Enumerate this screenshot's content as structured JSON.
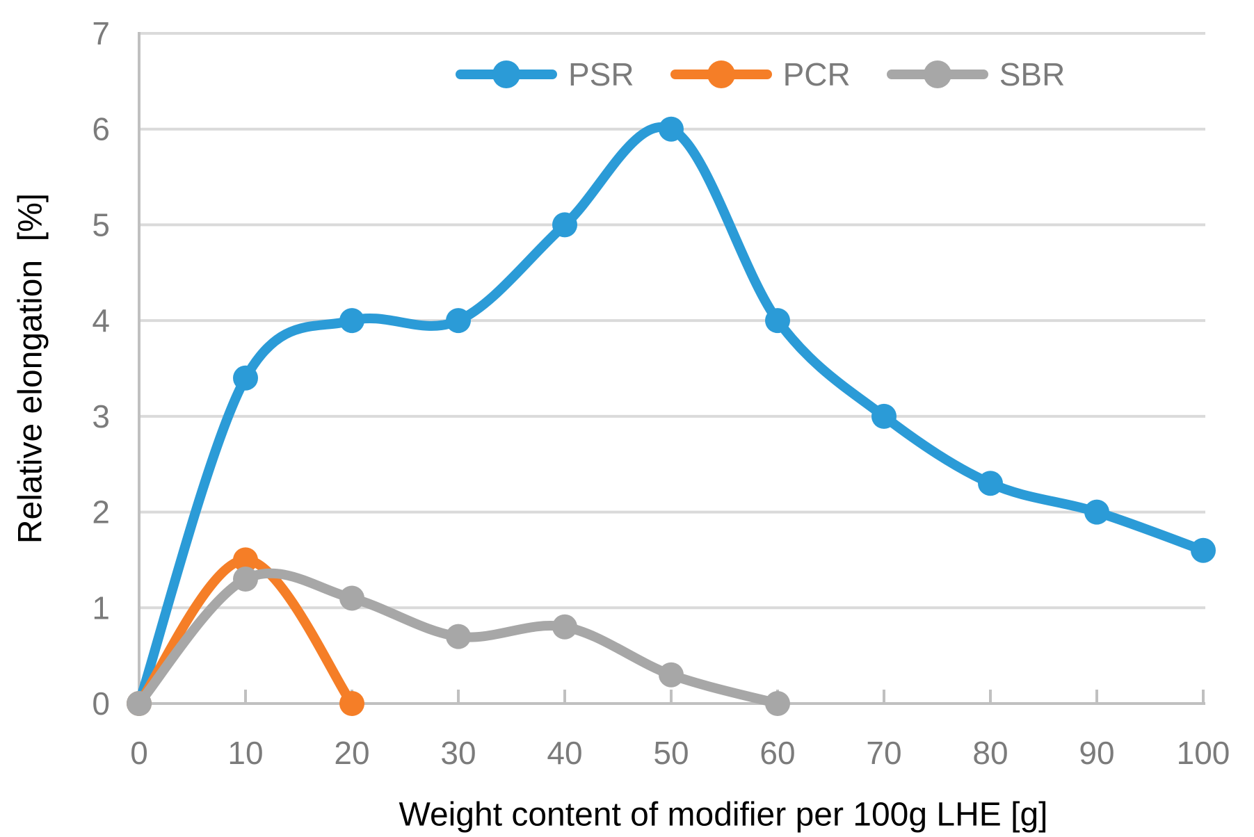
{
  "chart_data": {
    "type": "line",
    "title": "",
    "xlabel": "Weight content of modifier per 100g LHE [g]",
    "ylabel": "Relative elongation  [%]",
    "xlim": [
      0,
      100
    ],
    "ylim": [
      0,
      7
    ],
    "x_ticks": [
      0,
      10,
      20,
      30,
      40,
      50,
      60,
      70,
      80,
      90,
      100
    ],
    "y_ticks": [
      0,
      1,
      2,
      3,
      4,
      5,
      6,
      7
    ],
    "grid": "horizontal",
    "smooth_lines": true,
    "legend_position": "top-center",
    "series": [
      {
        "name": "PSR",
        "color": "#2b9bd7",
        "x": [
          0,
          10,
          20,
          30,
          40,
          50,
          60,
          70,
          80,
          90,
          100
        ],
        "y": [
          0,
          3.4,
          4,
          4,
          5,
          6,
          4,
          3,
          2.3,
          2,
          1.6
        ]
      },
      {
        "name": "PCR",
        "color": "#f57e27",
        "x": [
          0,
          10,
          20
        ],
        "y": [
          0,
          1.5,
          0
        ]
      },
      {
        "name": "SBR",
        "color": "#a7a7a7",
        "x": [
          0,
          10,
          20,
          30,
          40,
          50,
          60
        ],
        "y": [
          0,
          1.3,
          1.1,
          0.7,
          0.8,
          0.3,
          0
        ]
      }
    ]
  },
  "styles": {
    "background": "#ffffff",
    "gridline_color": "#dadada",
    "axis_line_color": "#c0c0c0",
    "tick_label_color": "#7b7b7b",
    "axis_title_color": "#000000",
    "legend_text_color": "#7b7b7b"
  }
}
